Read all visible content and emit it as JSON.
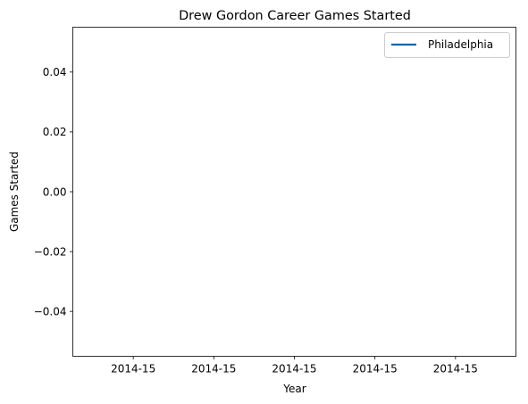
{
  "chart_data": {
    "type": "line",
    "title": "Drew Gordon Career Games Started",
    "xlabel": "Year",
    "ylabel": "Games Started",
    "x": [
      "2014-15"
    ],
    "series": [
      {
        "name": "Philadelphia",
        "values": [
          0
        ],
        "color": "#0a64b4"
      }
    ],
    "ylim": [
      -0.055,
      0.055
    ],
    "xlim": [
      -0.055,
      0.055
    ],
    "yticks": [
      -0.04,
      -0.02,
      0.0,
      0.02,
      0.04
    ],
    "ytick_labels": [
      "−0.04",
      "−0.02",
      "0.00",
      "0.02",
      "0.04"
    ],
    "xticks": [
      -0.04,
      -0.02,
      0.0,
      0.02,
      0.04
    ],
    "xtick_labels": [
      "2014-15",
      "2014-15",
      "2014-15",
      "2014-15",
      "2014-15"
    ],
    "grid": false,
    "legend_position": "top-right"
  }
}
